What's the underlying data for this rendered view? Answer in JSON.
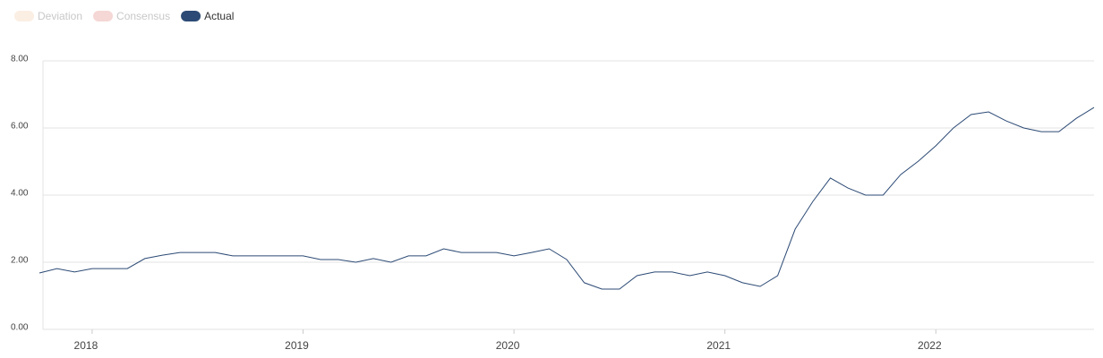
{
  "chart_data": {
    "type": "line",
    "legend_items": [
      {
        "name": "Deviation",
        "color": "#fbeee3",
        "visible": false
      },
      {
        "name": "Consensus",
        "color": "#f5d7d5",
        "visible": false
      }
    ],
    "categories": [
      null,
      null,
      null,
      "2018",
      null,
      null,
      null,
      null,
      null,
      null,
      null,
      null,
      null,
      null,
      null,
      "2019",
      null,
      null,
      null,
      null,
      null,
      null,
      null,
      null,
      null,
      null,
      null,
      "2020",
      null,
      null,
      null,
      null,
      null,
      null,
      null,
      null,
      null,
      null,
      null,
      "2021",
      null,
      null,
      null,
      null,
      null,
      null,
      null,
      null,
      null,
      null,
      null,
      "2022",
      null,
      null,
      null,
      null,
      null,
      null,
      null,
      null,
      null
    ],
    "series": [
      {
        "name": "Actual",
        "color": "#2c4a75",
        "visible": true,
        "values": [
          1.68,
          1.81,
          1.71,
          1.81,
          1.81,
          1.81,
          2.11,
          2.21,
          2.29,
          2.29,
          2.29,
          2.19,
          2.19,
          2.19,
          2.19,
          2.19,
          2.08,
          2.08,
          2.0,
          2.11,
          2.0,
          2.19,
          2.19,
          2.4,
          2.29,
          2.29,
          2.29,
          2.19,
          2.29,
          2.4,
          2.08,
          1.39,
          1.2,
          1.2,
          1.6,
          1.71,
          1.71,
          1.6,
          1.71,
          1.6,
          1.39,
          1.28,
          1.6,
          2.99,
          3.81,
          4.51,
          4.21,
          4.0,
          4.0,
          4.61,
          5.01,
          5.47,
          6.0,
          6.4,
          6.48,
          6.21,
          6.0,
          5.89,
          5.89,
          6.29,
          6.61
        ]
      }
    ],
    "ylim": [
      0,
      8
    ],
    "yticks": [
      {
        "value": 0,
        "label": "0.00"
      },
      {
        "value": 2,
        "label": "2.00"
      },
      {
        "value": 4,
        "label": "4.00"
      },
      {
        "value": 6,
        "label": "6.00"
      },
      {
        "value": 8,
        "label": "8.00"
      }
    ],
    "grid": true
  }
}
